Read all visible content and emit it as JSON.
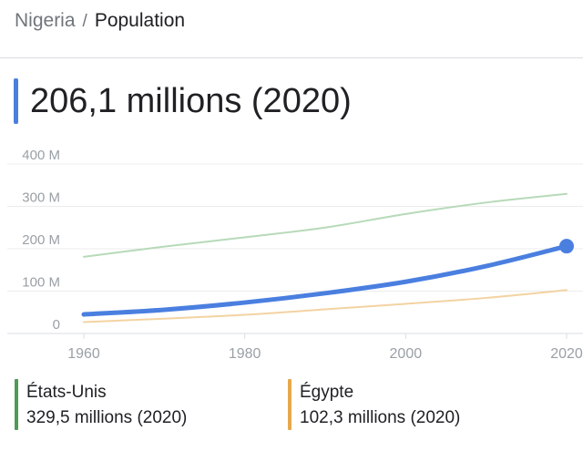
{
  "breadcrumb": {
    "parent": "Nigeria",
    "separator": "/",
    "current": "Population"
  },
  "headline": {
    "value": "206,1 millions (2020)",
    "accent": "#4a7fe0"
  },
  "chart_data": {
    "type": "line",
    "ylim": [
      0,
      400
    ],
    "xlim": [
      1960,
      2020
    ],
    "yticks": [
      {
        "value": 0,
        "label": "0"
      },
      {
        "value": 100,
        "label": "100 M"
      },
      {
        "value": 200,
        "label": "200 M"
      },
      {
        "value": 300,
        "label": "300 M"
      },
      {
        "value": 400,
        "label": "400 M"
      }
    ],
    "xticks": [
      {
        "value": 1960,
        "label": "1960"
      },
      {
        "value": 1980,
        "label": "1980"
      },
      {
        "value": 2000,
        "label": "2000"
      },
      {
        "value": 2020,
        "label": "2020"
      }
    ],
    "grid": true,
    "legend_position": "bottom",
    "series": [
      {
        "name": "États-Unis",
        "color": "#b7dab9",
        "x": [
          1960,
          1970,
          1980,
          1990,
          2000,
          2010,
          2020
        ],
        "values": [
          181,
          205,
          227,
          250,
          282,
          309,
          329.5
        ]
      },
      {
        "name": "Égypte",
        "color": "#f3d3a2",
        "x": [
          1960,
          1970,
          1980,
          1990,
          2000,
          2010,
          2020
        ],
        "values": [
          27,
          35,
          44,
          57,
          70,
          84,
          102.3
        ]
      },
      {
        "name": "Nigeria",
        "color": "#4a7fe0",
        "x": [
          1960,
          1970,
          1980,
          1990,
          2000,
          2010,
          2020
        ],
        "values": [
          45,
          56,
          73,
          95,
          122,
          159,
          206.1
        ]
      }
    ]
  },
  "legend": [
    {
      "name": "États-Unis",
      "value": "329,5 millions (2020)",
      "color": "#4f9a58"
    },
    {
      "name": "Égypte",
      "value": "102,3 millions (2020)",
      "color": "#e7a84d"
    }
  ]
}
